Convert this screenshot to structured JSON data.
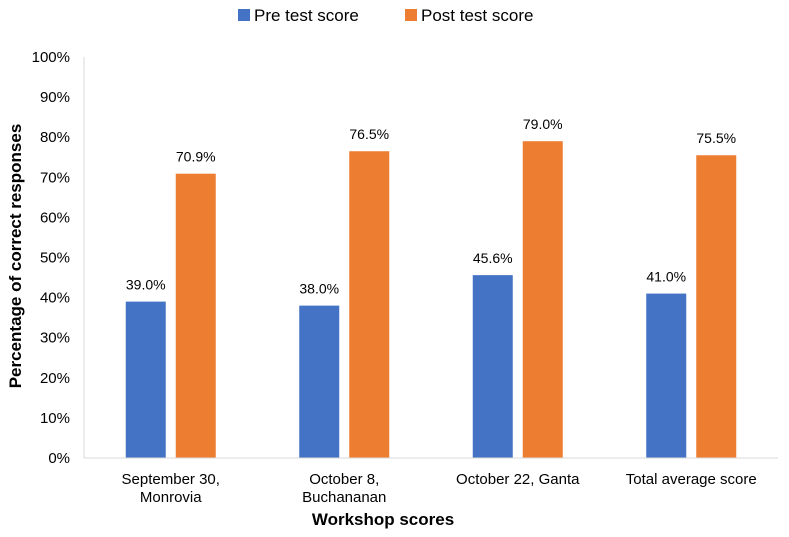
{
  "chart_data": {
    "type": "bar",
    "title": "",
    "xlabel": "Workshop scores",
    "ylabel": "Percentage of correct responses",
    "ylim": [
      0,
      100
    ],
    "yticks": [
      "0%",
      "10%",
      "20%",
      "30%",
      "40%",
      "50%",
      "60%",
      "70%",
      "80%",
      "90%",
      "100%"
    ],
    "yaxis_line": true,
    "grid": false,
    "legend": "top",
    "categories": [
      [
        "September 30,",
        "Monrovia"
      ],
      [
        "October 8,",
        "Buchananan"
      ],
      [
        "October 22, Ganta"
      ],
      [
        "Total average score"
      ]
    ],
    "series": [
      {
        "name": "Pre test score",
        "color": "#4472C4",
        "values": [
          39.0,
          38.0,
          45.6,
          41.0
        ],
        "labels": [
          "39.0%",
          "38.0%",
          "45.6%",
          "41.0%"
        ]
      },
      {
        "name": "Post test score",
        "color": "#ED7D31",
        "values": [
          70.9,
          76.5,
          79.0,
          75.5
        ],
        "labels": [
          "70.9%",
          "76.5%",
          "79.0%",
          "75.5%"
        ]
      }
    ]
  }
}
